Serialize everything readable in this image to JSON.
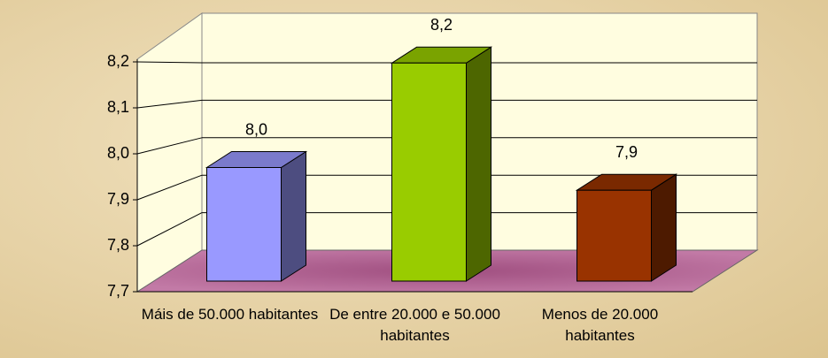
{
  "chart_data": {
    "type": "bar3d",
    "categories": [
      "Máis de 50.000 habitantes",
      "De entre 20.000 e 50.000 habitantes",
      "Menos de 20.000 habitantes"
    ],
    "values": [
      7.95,
      8.18,
      7.9
    ],
    "value_labels": [
      "8,0",
      "8,2",
      "7,9"
    ],
    "colors": [
      "#9999ff",
      "#99cc00",
      "#993300"
    ],
    "ylim": [
      7.7,
      8.2
    ],
    "yticks": [
      {
        "value": 7.7,
        "label": "7,7"
      },
      {
        "value": 7.8,
        "label": "7,8"
      },
      {
        "value": 7.9,
        "label": "7,9"
      },
      {
        "value": 8.0,
        "label": "8,0"
      },
      {
        "value": 8.1,
        "label": "8,1"
      },
      {
        "value": 8.2,
        "label": "8,2"
      }
    ],
    "grid": true
  }
}
